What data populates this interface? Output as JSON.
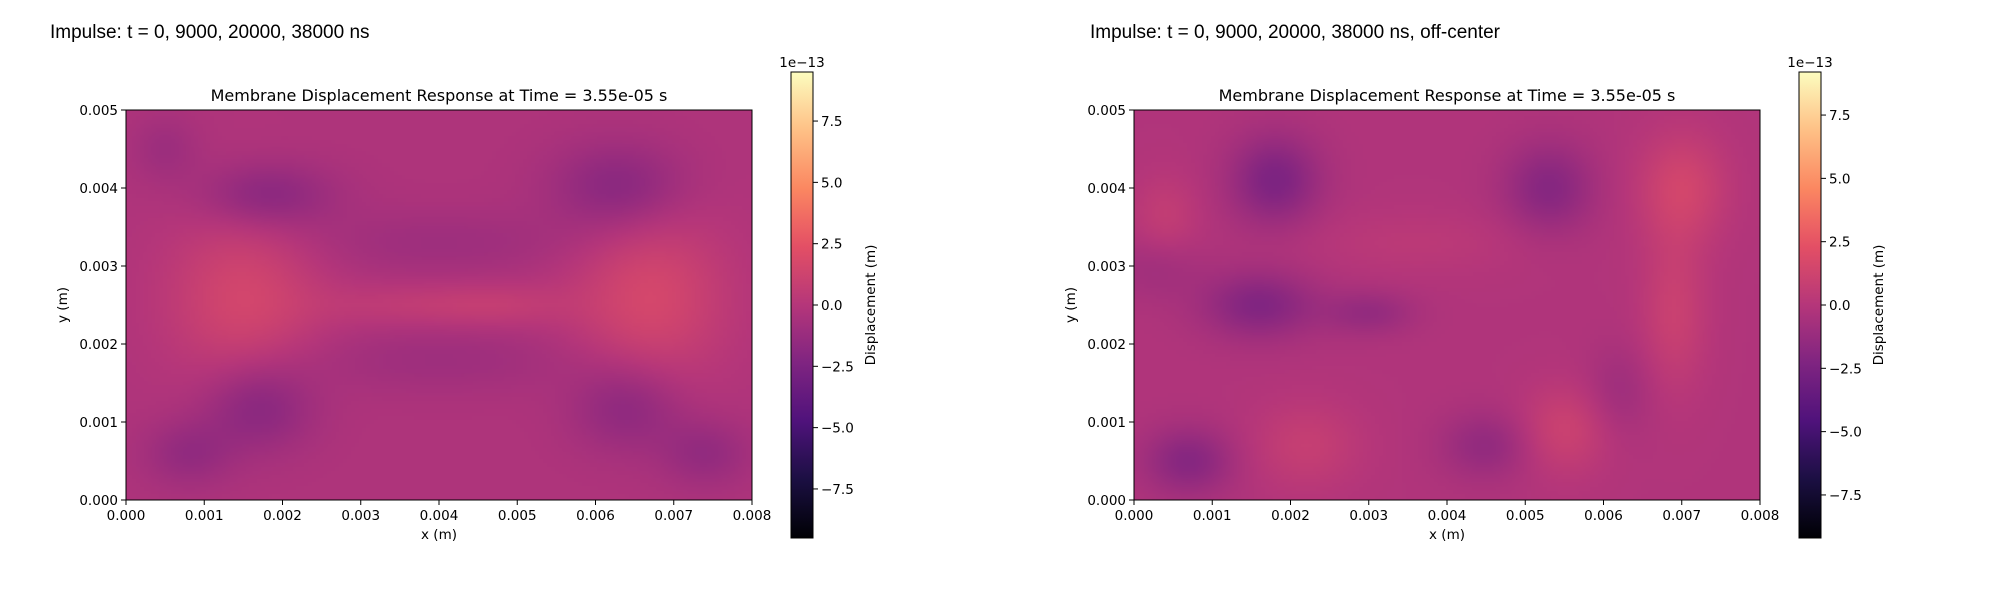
{
  "chart_data": [
    {
      "type": "heatmap",
      "panel_title": "Impulse: t = 0, 9000, 20000, 38000 ns",
      "title": "Membrane Displacement Response at Time = 3.55e-05 s",
      "xlabel": "x (m)",
      "ylabel": "y (m)",
      "xlim": [
        0.0,
        0.008
      ],
      "ylim": [
        0.0,
        0.005
      ],
      "xticks": [
        "0.000",
        "0.001",
        "0.002",
        "0.003",
        "0.004",
        "0.005",
        "0.006",
        "0.007",
        "0.008"
      ],
      "yticks": [
        "0.000",
        "0.001",
        "0.002",
        "0.003",
        "0.004",
        "0.005"
      ],
      "colormap": "magma",
      "colorbar": {
        "label": "Displacement (m)",
        "exponent": "1e−13",
        "range": [
          -9.5,
          9.5
        ],
        "ticks": [
          -7.5,
          -5.0,
          -2.5,
          0.0,
          2.5,
          5.0,
          7.5
        ],
        "tick_labels": [
          "−7.5",
          "−5.0",
          "−2.5",
          "0.0",
          "2.5",
          "5.0",
          "7.5"
        ]
      },
      "base_value": -0.3,
      "features": [
        {
          "x": 0.0015,
          "y": 0.0026,
          "sx": 0.0007,
          "sy": 0.0008,
          "amp": 1.8
        },
        {
          "x": 0.0067,
          "y": 0.0026,
          "sx": 0.0007,
          "sy": 0.0008,
          "amp": 1.9
        },
        {
          "x": 0.0036,
          "y": 0.0025,
          "sx": 0.0008,
          "sy": 0.0002,
          "amp": 0.8
        },
        {
          "x": 0.0048,
          "y": 0.0025,
          "sx": 0.0006,
          "sy": 0.0002,
          "amp": 0.8
        },
        {
          "x": 0.0018,
          "y": 0.0039,
          "sx": 0.0006,
          "sy": 0.0003,
          "amp": -1.8
        },
        {
          "x": 0.0063,
          "y": 0.004,
          "sx": 0.0006,
          "sy": 0.0004,
          "amp": -1.8
        },
        {
          "x": 0.0017,
          "y": 0.0012,
          "sx": 0.0005,
          "sy": 0.0004,
          "amp": -1.8
        },
        {
          "x": 0.0064,
          "y": 0.0012,
          "sx": 0.0005,
          "sy": 0.0004,
          "amp": -1.6
        },
        {
          "x": 0.0008,
          "y": 0.0006,
          "sx": 0.0004,
          "sy": 0.0003,
          "amp": -1.2
        },
        {
          "x": 0.0074,
          "y": 0.0006,
          "sx": 0.0004,
          "sy": 0.0003,
          "amp": -1.2
        },
        {
          "x": 0.004,
          "y": 0.0033,
          "sx": 0.0014,
          "sy": 0.0003,
          "amp": -0.7
        },
        {
          "x": 0.004,
          "y": 0.0018,
          "sx": 0.0014,
          "sy": 0.0003,
          "amp": -0.7
        },
        {
          "x": 0.0005,
          "y": 0.0045,
          "sx": 0.0003,
          "sy": 0.0003,
          "amp": -0.8
        }
      ]
    },
    {
      "type": "heatmap",
      "panel_title": "Impulse: t = 0, 9000, 20000, 38000 ns, off-center",
      "title": "Membrane Displacement Response at Time = 3.55e-05 s",
      "xlabel": "x (m)",
      "ylabel": "y (m)",
      "xlim": [
        0.0,
        0.008
      ],
      "ylim": [
        0.0,
        0.005
      ],
      "xticks": [
        "0.000",
        "0.001",
        "0.002",
        "0.003",
        "0.004",
        "0.005",
        "0.006",
        "0.007",
        "0.008"
      ],
      "yticks": [
        "0.000",
        "0.001",
        "0.002",
        "0.003",
        "0.004",
        "0.005"
      ],
      "colormap": "magma",
      "colorbar": {
        "label": "Displacement (m)",
        "exponent": "1e−13",
        "range": [
          -9.2,
          9.2
        ],
        "ticks": [
          -7.5,
          -5.0,
          -2.5,
          0.0,
          2.5,
          5.0,
          7.5
        ],
        "tick_labels": [
          "−7.5",
          "−5.0",
          "−2.5",
          "0.0",
          "2.5",
          "5.0",
          "7.5"
        ]
      },
      "base_value": -0.2,
      "features": [
        {
          "x": 0.0018,
          "y": 0.0041,
          "sx": 0.0004,
          "sy": 0.0004,
          "amp": -2.2
        },
        {
          "x": 0.0053,
          "y": 0.004,
          "sx": 0.0004,
          "sy": 0.0004,
          "amp": -1.8
        },
        {
          "x": 0.0016,
          "y": 0.0025,
          "sx": 0.0005,
          "sy": 0.0003,
          "amp": -2.0
        },
        {
          "x": 0.003,
          "y": 0.0024,
          "sx": 0.0004,
          "sy": 0.0002,
          "amp": -1.2
        },
        {
          "x": 0.0007,
          "y": 0.0005,
          "sx": 0.0004,
          "sy": 0.0003,
          "amp": -1.8
        },
        {
          "x": 0.0045,
          "y": 0.0007,
          "sx": 0.0004,
          "sy": 0.0003,
          "amp": -1.3
        },
        {
          "x": 0.0003,
          "y": 0.003,
          "sx": 0.0004,
          "sy": 0.0003,
          "amp": -0.8
        },
        {
          "x": 0.007,
          "y": 0.004,
          "sx": 0.0004,
          "sy": 0.0005,
          "amp": 1.6
        },
        {
          "x": 0.0069,
          "y": 0.0024,
          "sx": 0.0003,
          "sy": 0.0007,
          "amp": 1.2
        },
        {
          "x": 0.0055,
          "y": 0.0009,
          "sx": 0.0004,
          "sy": 0.0004,
          "amp": 1.3
        },
        {
          "x": 0.0022,
          "y": 0.0007,
          "sx": 0.0005,
          "sy": 0.0004,
          "amp": 1.0
        },
        {
          "x": 0.0004,
          "y": 0.0036,
          "sx": 0.0003,
          "sy": 0.0004,
          "amp": 0.9
        },
        {
          "x": 0.0036,
          "y": 0.0033,
          "sx": 0.001,
          "sy": 0.0003,
          "amp": 0.5
        },
        {
          "x": 0.0062,
          "y": 0.0014,
          "sx": 0.0003,
          "sy": 0.0004,
          "amp": -0.8
        }
      ]
    }
  ]
}
